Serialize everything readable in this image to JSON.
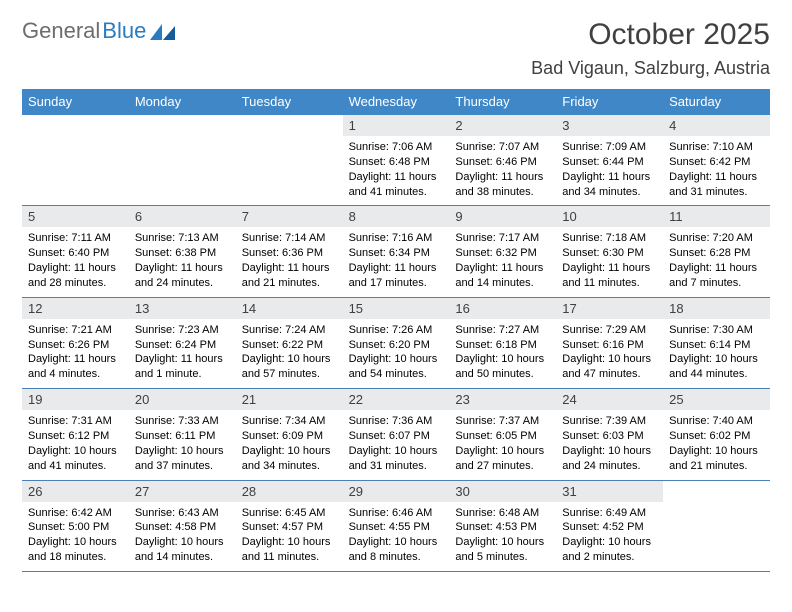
{
  "logo": {
    "text1": "General",
    "text2": "Blue"
  },
  "title": "October 2025",
  "location": "Bad Vigaun, Salzburg, Austria",
  "colors": {
    "header_bg": "#4087c7",
    "header_text": "#ffffff",
    "daynum_bg": "#e9eaeb",
    "border": "#4a7fb8",
    "title_color": "#404040",
    "logo_gray": "#6d6d6d",
    "logo_blue": "#2b7bbf"
  },
  "weekdays": [
    "Sunday",
    "Monday",
    "Tuesday",
    "Wednesday",
    "Thursday",
    "Friday",
    "Saturday"
  ],
  "first_weekday_index": 3,
  "days": [
    {
      "n": 1,
      "sunrise": "7:06 AM",
      "sunset": "6:48 PM",
      "daylight": "11 hours and 41 minutes."
    },
    {
      "n": 2,
      "sunrise": "7:07 AM",
      "sunset": "6:46 PM",
      "daylight": "11 hours and 38 minutes."
    },
    {
      "n": 3,
      "sunrise": "7:09 AM",
      "sunset": "6:44 PM",
      "daylight": "11 hours and 34 minutes."
    },
    {
      "n": 4,
      "sunrise": "7:10 AM",
      "sunset": "6:42 PM",
      "daylight": "11 hours and 31 minutes."
    },
    {
      "n": 5,
      "sunrise": "7:11 AM",
      "sunset": "6:40 PM",
      "daylight": "11 hours and 28 minutes."
    },
    {
      "n": 6,
      "sunrise": "7:13 AM",
      "sunset": "6:38 PM",
      "daylight": "11 hours and 24 minutes."
    },
    {
      "n": 7,
      "sunrise": "7:14 AM",
      "sunset": "6:36 PM",
      "daylight": "11 hours and 21 minutes."
    },
    {
      "n": 8,
      "sunrise": "7:16 AM",
      "sunset": "6:34 PM",
      "daylight": "11 hours and 17 minutes."
    },
    {
      "n": 9,
      "sunrise": "7:17 AM",
      "sunset": "6:32 PM",
      "daylight": "11 hours and 14 minutes."
    },
    {
      "n": 10,
      "sunrise": "7:18 AM",
      "sunset": "6:30 PM",
      "daylight": "11 hours and 11 minutes."
    },
    {
      "n": 11,
      "sunrise": "7:20 AM",
      "sunset": "6:28 PM",
      "daylight": "11 hours and 7 minutes."
    },
    {
      "n": 12,
      "sunrise": "7:21 AM",
      "sunset": "6:26 PM",
      "daylight": "11 hours and 4 minutes."
    },
    {
      "n": 13,
      "sunrise": "7:23 AM",
      "sunset": "6:24 PM",
      "daylight": "11 hours and 1 minute."
    },
    {
      "n": 14,
      "sunrise": "7:24 AM",
      "sunset": "6:22 PM",
      "daylight": "10 hours and 57 minutes."
    },
    {
      "n": 15,
      "sunrise": "7:26 AM",
      "sunset": "6:20 PM",
      "daylight": "10 hours and 54 minutes."
    },
    {
      "n": 16,
      "sunrise": "7:27 AM",
      "sunset": "6:18 PM",
      "daylight": "10 hours and 50 minutes."
    },
    {
      "n": 17,
      "sunrise": "7:29 AM",
      "sunset": "6:16 PM",
      "daylight": "10 hours and 47 minutes."
    },
    {
      "n": 18,
      "sunrise": "7:30 AM",
      "sunset": "6:14 PM",
      "daylight": "10 hours and 44 minutes."
    },
    {
      "n": 19,
      "sunrise": "7:31 AM",
      "sunset": "6:12 PM",
      "daylight": "10 hours and 41 minutes."
    },
    {
      "n": 20,
      "sunrise": "7:33 AM",
      "sunset": "6:11 PM",
      "daylight": "10 hours and 37 minutes."
    },
    {
      "n": 21,
      "sunrise": "7:34 AM",
      "sunset": "6:09 PM",
      "daylight": "10 hours and 34 minutes."
    },
    {
      "n": 22,
      "sunrise": "7:36 AM",
      "sunset": "6:07 PM",
      "daylight": "10 hours and 31 minutes."
    },
    {
      "n": 23,
      "sunrise": "7:37 AM",
      "sunset": "6:05 PM",
      "daylight": "10 hours and 27 minutes."
    },
    {
      "n": 24,
      "sunrise": "7:39 AM",
      "sunset": "6:03 PM",
      "daylight": "10 hours and 24 minutes."
    },
    {
      "n": 25,
      "sunrise": "7:40 AM",
      "sunset": "6:02 PM",
      "daylight": "10 hours and 21 minutes."
    },
    {
      "n": 26,
      "sunrise": "6:42 AM",
      "sunset": "5:00 PM",
      "daylight": "10 hours and 18 minutes."
    },
    {
      "n": 27,
      "sunrise": "6:43 AM",
      "sunset": "4:58 PM",
      "daylight": "10 hours and 14 minutes."
    },
    {
      "n": 28,
      "sunrise": "6:45 AM",
      "sunset": "4:57 PM",
      "daylight": "10 hours and 11 minutes."
    },
    {
      "n": 29,
      "sunrise": "6:46 AM",
      "sunset": "4:55 PM",
      "daylight": "10 hours and 8 minutes."
    },
    {
      "n": 30,
      "sunrise": "6:48 AM",
      "sunset": "4:53 PM",
      "daylight": "10 hours and 5 minutes."
    },
    {
      "n": 31,
      "sunrise": "6:49 AM",
      "sunset": "4:52 PM",
      "daylight": "10 hours and 2 minutes."
    }
  ],
  "labels": {
    "sunrise": "Sunrise:",
    "sunset": "Sunset:",
    "daylight": "Daylight:"
  }
}
